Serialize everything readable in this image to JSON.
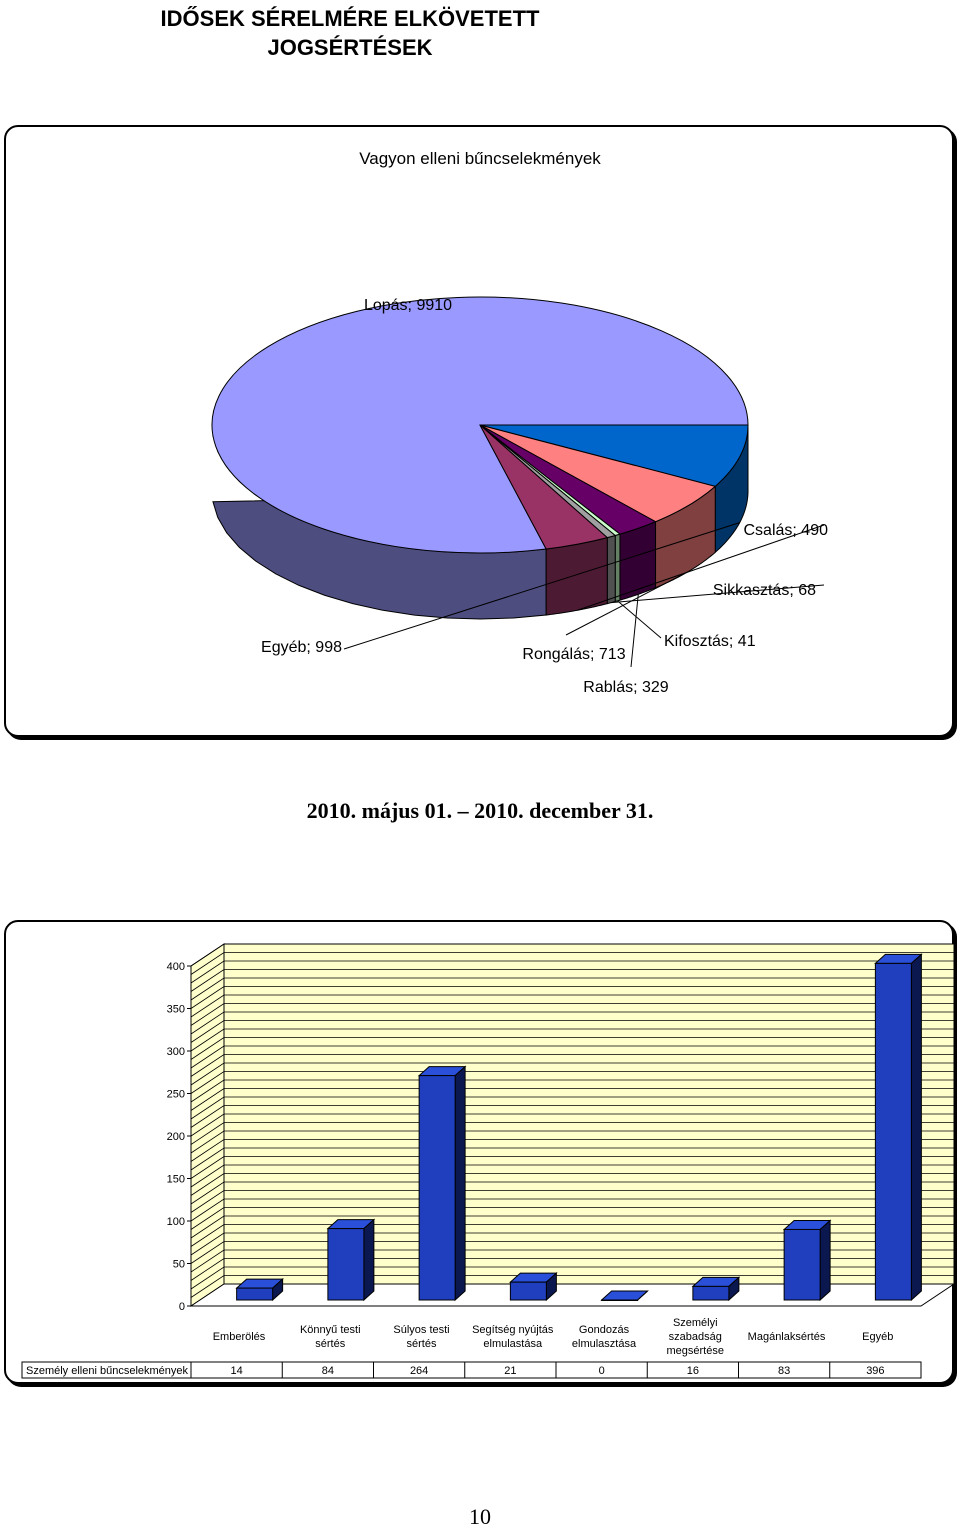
{
  "page": {
    "title_line1": "IDŐSEK SÉRELMÉRE ELKÖVETETT",
    "title_line2": "JOGSÉRTÉSEK",
    "date_range": "2010. május 01. – 2010. december 31.",
    "page_number": "10"
  },
  "chart_data": [
    {
      "type": "pie",
      "title": "Vagyon elleni bűncselekmények",
      "slices": [
        {
          "label": "Lopás",
          "value": 9910,
          "display": "Lopás; 9910",
          "color": "#9999ff"
        },
        {
          "label": "Egyéb",
          "value": 998,
          "display": "Egyéb; 998",
          "color": "#0066cc"
        },
        {
          "label": "Rongálás",
          "value": 713,
          "display": "Rongálás; 713",
          "color": "#ff8080"
        },
        {
          "label": "Rablás",
          "value": 329,
          "display": "Rablás; 329",
          "color": "#660066"
        },
        {
          "label": "Kifosztás",
          "value": 41,
          "display": "Kifosztás; 41",
          "color": "#ccffcc"
        },
        {
          "label": "Sikkasztás",
          "value": 68,
          "display": "Sikkasztás; 68",
          "color": "#a0a0a0"
        },
        {
          "label": "Csalás",
          "value": 490,
          "display": "Csalás; 490",
          "color": "#993366"
        }
      ]
    },
    {
      "type": "bar",
      "series_name": "Személy elleni bűncselekmények",
      "categories": [
        [
          "Emberölés"
        ],
        [
          "Könnyű testi",
          "sértés"
        ],
        [
          "Súlyos testi",
          "sértés"
        ],
        [
          "Segítség nyújtás",
          "elmulastása"
        ],
        [
          "Gondozás",
          "elmulasztása"
        ],
        [
          "Személyi",
          "szabadság",
          "megsértése"
        ],
        [
          "Magánlaksértés"
        ],
        [
          "Egyéb"
        ]
      ],
      "values": [
        14,
        84,
        264,
        21,
        0,
        16,
        83,
        396
      ],
      "ylim": [
        0,
        400
      ],
      "yticks": [
        0,
        50,
        100,
        150,
        200,
        250,
        300,
        350,
        400
      ],
      "colors": {
        "bar_front": "#1f3fbf",
        "bar_side": "#0b1850",
        "bar_top": "#2a4fd8",
        "wall": "#ffffcc"
      }
    }
  ]
}
